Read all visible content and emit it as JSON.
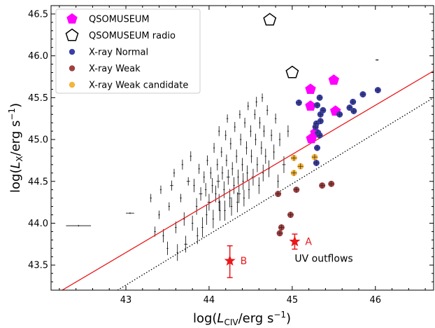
{
  "chart_data": {
    "type": "scatter",
    "xlim": [
      42.1,
      46.7
    ],
    "ylim": [
      43.2,
      46.6
    ],
    "x_ticks": [
      "43",
      "44",
      "45",
      "46"
    ],
    "y_ticks": [
      "43.5",
      "44.0",
      "44.5",
      "45.0",
      "45.5",
      "46.0",
      "46.5"
    ],
    "xlabel": {
      "pre": "log(",
      "var": "L",
      "sub": "CIV",
      "post": "/erg s",
      "sup": "−1",
      "close": ")"
    },
    "ylabel": {
      "pre": "log(",
      "var": "L",
      "sub": "X",
      "post": "/erg s",
      "sup": "−1",
      "close": ")"
    },
    "legend": {
      "position": "top-left",
      "entries": [
        {
          "label": "QSOMUSEUM",
          "marker": "pentagon-filled",
          "color": "#ff00ff"
        },
        {
          "label": "QSOMUSEUM radio",
          "marker": "pentagon-open",
          "color": "#000000"
        },
        {
          "label": "X-ray Normal",
          "marker": "circle",
          "color": "#3a3fa8"
        },
        {
          "label": "X-ray Weak",
          "marker": "circle",
          "color": "#a04040"
        },
        {
          "label": "X-ray Weak candidate",
          "marker": "circle",
          "color": "#f5b43a"
        }
      ]
    },
    "lines": [
      {
        "style": "solid",
        "color": "#e8191c",
        "points": [
          [
            42.2,
            43.18
          ],
          [
            46.7,
            45.82
          ]
        ]
      },
      {
        "style": "dotted",
        "color": "#000000",
        "points": [
          [
            42.9,
            43.2
          ],
          [
            46.7,
            45.5
          ]
        ]
      }
    ],
    "series": [
      {
        "name": "QSOMUSEUM",
        "marker": "pentagon-filled",
        "color": "#ff00ff",
        "points": [
          [
            45.22,
            45.6
          ],
          [
            45.5,
            45.71
          ],
          [
            45.22,
            45.4
          ],
          [
            45.28,
            45.08
          ],
          [
            45.23,
            45.01
          ],
          [
            45.52,
            45.34
          ]
        ]
      },
      {
        "name": "QSOMUSEUM radio",
        "marker": "pentagon-open",
        "color": "#000000",
        "points": [
          [
            44.73,
            46.43
          ],
          [
            45.0,
            45.8
          ]
        ]
      },
      {
        "name": "X-ray Normal",
        "marker": "circle",
        "color": "#3a3fa8",
        "points": [
          [
            46.03,
            45.59
          ],
          [
            45.85,
            45.54
          ],
          [
            45.73,
            45.45
          ],
          [
            45.69,
            45.38
          ],
          [
            45.74,
            45.34
          ],
          [
            45.57,
            45.3
          ],
          [
            45.33,
            45.5
          ],
          [
            45.3,
            45.41
          ],
          [
            45.37,
            45.35
          ],
          [
            45.34,
            45.3
          ],
          [
            45.29,
            45.19
          ],
          [
            45.28,
            45.15
          ],
          [
            45.31,
            45.08
          ],
          [
            45.34,
            45.22
          ],
          [
            45.08,
            45.44
          ],
          [
            45.33,
            45.05
          ],
          [
            45.3,
            44.9
          ],
          [
            45.29,
            44.72
          ]
        ]
      },
      {
        "name": "X-ray Weak",
        "marker": "circle",
        "color": "#a04040",
        "points": [
          [
            44.83,
            44.35
          ],
          [
            45.05,
            44.4
          ],
          [
            45.36,
            44.45
          ],
          [
            45.47,
            44.47
          ],
          [
            44.98,
            44.1
          ],
          [
            44.87,
            43.95
          ],
          [
            44.85,
            43.88
          ]
        ]
      },
      {
        "name": "X-ray Weak candidate",
        "marker": "circle",
        "color": "#f5b43a",
        "points": [
          [
            45.02,
            44.78
          ],
          [
            45.02,
            44.6
          ],
          [
            45.1,
            44.68
          ],
          [
            45.27,
            44.79
          ]
        ]
      }
    ],
    "special_points": [
      {
        "label": "A",
        "x": 45.03,
        "y": 43.78,
        "yerr_low": 0.09,
        "yerr_high": 0.09,
        "color": "#e8191c"
      },
      {
        "label": "B",
        "x": 44.25,
        "y": 43.55,
        "yerr_low": 0.2,
        "yerr_high": 0.18,
        "color": "#e8191c"
      }
    ],
    "annotations": [
      {
        "text": "UV outflows",
        "x": 45.38,
        "y": 43.54
      }
    ],
    "cloud_points": [
      [
        42.43,
        43.97,
        0.15,
        0.01
      ],
      [
        43.05,
        44.12,
        0.05,
        0.01
      ],
      [
        46.02,
        45.95,
        0.02,
        0.01
      ],
      [
        43.4,
        44.1,
        0.01,
        0.05
      ],
      [
        43.35,
        43.9,
        0.01,
        0.06
      ],
      [
        43.45,
        43.85,
        0.01,
        0.08
      ],
      [
        43.52,
        44.2,
        0.01,
        0.05
      ],
      [
        43.62,
        43.65,
        0.01,
        0.1
      ],
      [
        43.66,
        44.3,
        0.01,
        0.05
      ],
      [
        43.55,
        44.45,
        0.02,
        0.06
      ],
      [
        43.7,
        44.05,
        0.01,
        0.08
      ],
      [
        43.75,
        44.5,
        0.02,
        0.05
      ],
      [
        43.78,
        44.8,
        0.01,
        0.06
      ],
      [
        43.82,
        44.45,
        0.01,
        0.08
      ],
      [
        43.85,
        44.2,
        0.01,
        0.1
      ],
      [
        43.88,
        44.65,
        0.01,
        0.06
      ],
      [
        43.9,
        44.35,
        0.02,
        0.08
      ],
      [
        43.92,
        43.95,
        0.01,
        0.12
      ],
      [
        43.94,
        44.55,
        0.01,
        0.07
      ],
      [
        43.96,
        44.4,
        0.01,
        0.08
      ],
      [
        43.98,
        44.75,
        0.01,
        0.06
      ],
      [
        44.0,
        44.25,
        0.02,
        0.1
      ],
      [
        44.02,
        44.6,
        0.01,
        0.07
      ],
      [
        44.04,
        44.45,
        0.01,
        0.09
      ],
      [
        44.06,
        44.9,
        0.01,
        0.06
      ],
      [
        44.08,
        44.35,
        0.01,
        0.1
      ],
      [
        44.1,
        44.7,
        0.01,
        0.07
      ],
      [
        44.11,
        44.5,
        0.02,
        0.08
      ],
      [
        44.13,
        44.15,
        0.01,
        0.12
      ],
      [
        44.15,
        44.85,
        0.01,
        0.06
      ],
      [
        44.16,
        44.6,
        0.01,
        0.08
      ],
      [
        44.18,
        44.4,
        0.01,
        0.1
      ],
      [
        44.2,
        45.05,
        0.01,
        0.06
      ],
      [
        44.21,
        44.75,
        0.01,
        0.07
      ],
      [
        44.23,
        44.55,
        0.02,
        0.09
      ],
      [
        44.25,
        44.3,
        0.01,
        0.11
      ],
      [
        44.26,
        44.95,
        0.01,
        0.07
      ],
      [
        44.28,
        44.65,
        0.01,
        0.08
      ],
      [
        44.3,
        44.45,
        0.01,
        0.1
      ],
      [
        44.31,
        45.15,
        0.01,
        0.06
      ],
      [
        44.33,
        44.8,
        0.01,
        0.08
      ],
      [
        44.35,
        44.55,
        0.01,
        0.09
      ],
      [
        44.36,
        44.35,
        0.02,
        0.11
      ],
      [
        44.38,
        45.0,
        0.01,
        0.07
      ],
      [
        44.4,
        44.7,
        0.01,
        0.08
      ],
      [
        44.41,
        44.5,
        0.01,
        0.1
      ],
      [
        44.43,
        45.2,
        0.01,
        0.06
      ],
      [
        44.45,
        44.9,
        0.01,
        0.08
      ],
      [
        44.46,
        44.6,
        0.01,
        0.09
      ],
      [
        44.48,
        44.4,
        0.01,
        0.11
      ],
      [
        44.5,
        45.1,
        0.01,
        0.07
      ],
      [
        44.51,
        44.8,
        0.01,
        0.08
      ],
      [
        44.53,
        44.55,
        0.02,
        0.1
      ],
      [
        44.55,
        45.3,
        0.01,
        0.06
      ],
      [
        44.56,
        45.0,
        0.01,
        0.07
      ],
      [
        44.58,
        44.7,
        0.01,
        0.09
      ],
      [
        44.6,
        44.45,
        0.01,
        0.1
      ],
      [
        44.61,
        45.2,
        0.01,
        0.07
      ],
      [
        44.63,
        44.9,
        0.01,
        0.08
      ],
      [
        44.65,
        44.6,
        0.01,
        0.1
      ],
      [
        44.66,
        45.1,
        0.01,
        0.07
      ],
      [
        44.68,
        44.8,
        0.01,
        0.09
      ],
      [
        44.7,
        45.35,
        0.01,
        0.06
      ],
      [
        44.72,
        44.65,
        0.01,
        0.1
      ],
      [
        44.75,
        45.05,
        0.01,
        0.07
      ],
      [
        44.78,
        44.85,
        0.01,
        0.09
      ],
      [
        44.8,
        45.25,
        0.01,
        0.06
      ],
      [
        44.85,
        45.0,
        0.01,
        0.08
      ],
      [
        44.9,
        44.7,
        0.02,
        0.1
      ],
      [
        43.3,
        44.3,
        0.01,
        0.05
      ],
      [
        43.6,
        43.95,
        0.01,
        0.07
      ],
      [
        43.72,
        43.75,
        0.02,
        0.1
      ],
      [
        43.8,
        44.0,
        0.01,
        0.09
      ],
      [
        43.86,
        43.85,
        0.01,
        0.1
      ],
      [
        43.97,
        44.1,
        0.01,
        0.12
      ],
      [
        44.05,
        44.05,
        0.01,
        0.11
      ],
      [
        44.12,
        44.25,
        0.01,
        0.1
      ],
      [
        44.19,
        44.15,
        0.01,
        0.12
      ],
      [
        44.27,
        44.2,
        0.01,
        0.11
      ],
      [
        44.34,
        44.25,
        0.01,
        0.12
      ],
      [
        44.42,
        44.3,
        0.01,
        0.1
      ],
      [
        44.12,
        45.1,
        0.01,
        0.06
      ],
      [
        44.22,
        45.25,
        0.01,
        0.05
      ],
      [
        44.37,
        45.3,
        0.01,
        0.05
      ],
      [
        44.47,
        45.4,
        0.01,
        0.05
      ],
      [
        44.57,
        45.45,
        0.01,
        0.06
      ],
      [
        44.64,
        45.5,
        0.01,
        0.05
      ],
      [
        44.83,
        44.5,
        0.01,
        0.08
      ],
      [
        44.95,
        45.1,
        0.01,
        0.07
      ],
      [
        43.5,
        43.7,
        0.01,
        0.08
      ],
      [
        43.42,
        44.4,
        0.01,
        0.05
      ],
      [
        43.58,
        44.6,
        0.01,
        0.05
      ],
      [
        43.68,
        44.7,
        0.01,
        0.06
      ]
    ]
  }
}
